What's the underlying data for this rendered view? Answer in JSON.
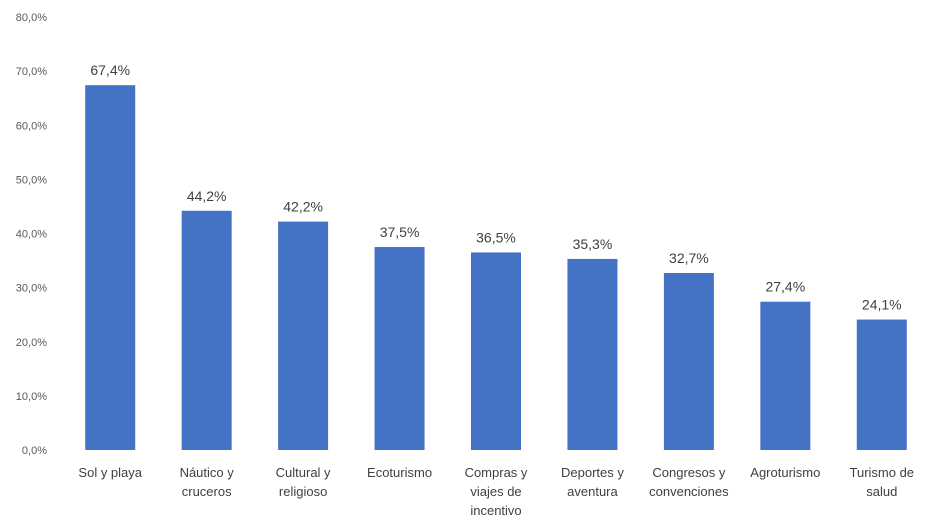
{
  "chart_data": {
    "type": "bar",
    "title": "",
    "xlabel": "",
    "ylabel": "",
    "ylim": [
      0,
      80
    ],
    "y_ticks": [
      "0,0%",
      "10,0%",
      "20,0%",
      "30,0%",
      "40,0%",
      "50,0%",
      "60,0%",
      "70,0%",
      "80,0%"
    ],
    "grid": false,
    "legend": "none",
    "bar_color": "#4472C4",
    "categories": [
      "Sol y playa",
      "Náutico y cruceros",
      "Cultural y religioso",
      "Ecoturismo",
      "Compras y viajes de incentivo",
      "Deportes y aventura",
      "Congresos y convenciones",
      "Agroturismo",
      "Turismo de salud"
    ],
    "category_lines": [
      [
        "Sol y playa"
      ],
      [
        "Náutico y",
        "cruceros"
      ],
      [
        "Cultural y",
        "religioso"
      ],
      [
        "Ecoturismo"
      ],
      [
        "Compras y",
        "viajes de",
        "incentivo"
      ],
      [
        "Deportes y",
        "aventura"
      ],
      [
        "Congresos y",
        "convenciones"
      ],
      [
        "Agroturismo"
      ],
      [
        "Turismo de",
        "salud"
      ]
    ],
    "values": [
      67.4,
      44.2,
      42.2,
      37.5,
      36.5,
      35.3,
      32.7,
      27.4,
      24.1
    ],
    "data_labels": [
      "67,4%",
      "44,2%",
      "42,2%",
      "37,5%",
      "36,5%",
      "35,3%",
      "32,7%",
      "27,4%",
      "24,1%"
    ]
  }
}
